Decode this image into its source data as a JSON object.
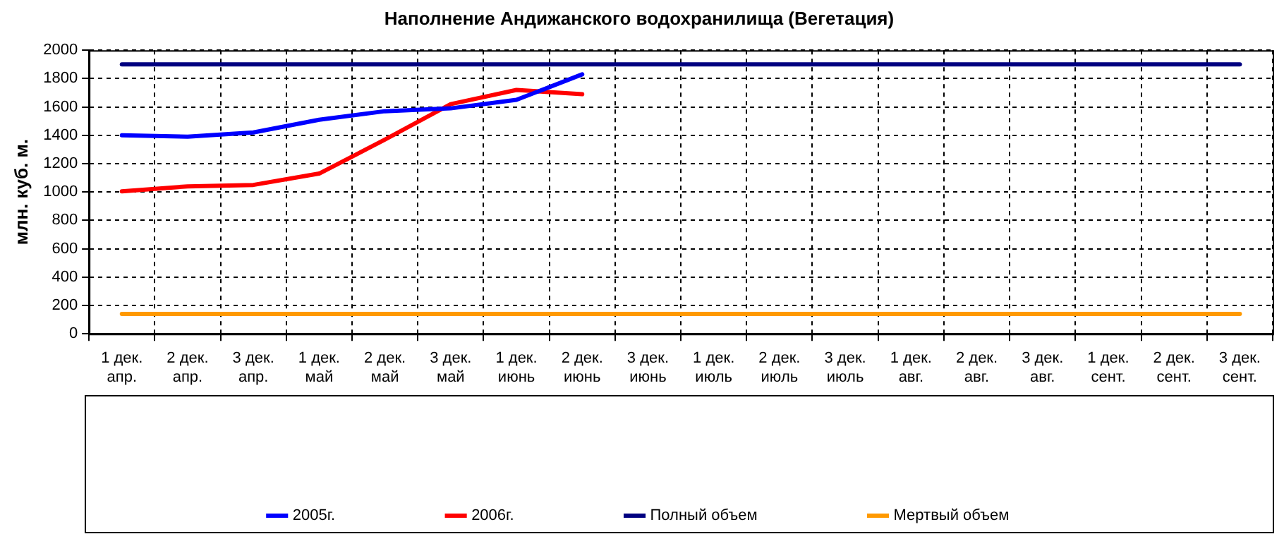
{
  "chart_data": {
    "type": "line",
    "title": "Наполнение Андижанского водохранилища (Вегетация)",
    "ylabel": "млн. куб. м.",
    "categories": [
      "1 дек. апр.",
      "2 дек. апр.",
      "3 дек. апр.",
      "1 дек. май",
      "2 дек. май",
      "3 дек. май",
      "1 дек. июнь",
      "2 дек. июнь",
      "3 дек. июнь",
      "1 дек. июль",
      "2 дек. июль",
      "3 дек. июль",
      "1 дек. авг.",
      "2 дек. авг.",
      "3 дек. авг.",
      "1 дек. сент.",
      "2 дек. сент.",
      "3 дек. сент."
    ],
    "series": [
      {
        "name": "2005г.",
        "color": "#0000ff",
        "values": [
          1400,
          1390,
          1420,
          1510,
          1570,
          1590,
          1650,
          1830,
          null,
          null,
          null,
          null,
          null,
          null,
          null,
          null,
          null,
          null
        ]
      },
      {
        "name": "2006г.",
        "color": "#ff0000",
        "values": [
          1005,
          1040,
          1050,
          1130,
          1370,
          1620,
          1720,
          1690,
          null,
          null,
          null,
          null,
          null,
          null,
          null,
          null,
          null,
          null
        ]
      },
      {
        "name": "Полный объем",
        "color": "#000080",
        "values": [
          1900,
          1900,
          1900,
          1900,
          1900,
          1900,
          1900,
          1900,
          1900,
          1900,
          1900,
          1900,
          1900,
          1900,
          1900,
          1900,
          1900,
          1900
        ]
      },
      {
        "name": "Мертвый объем",
        "color": "#ff9900",
        "values": [
          140,
          140,
          140,
          140,
          140,
          140,
          140,
          140,
          140,
          140,
          140,
          140,
          140,
          140,
          140,
          140,
          140,
          140
        ]
      }
    ],
    "ylim": [
      0,
      2000
    ],
    "yticks": [
      0,
      200,
      400,
      600,
      800,
      1000,
      1200,
      1400,
      1600,
      1800,
      2000
    ],
    "grid": true,
    "legend": "bottom",
    "marker": "none",
    "line_style": "solid"
  }
}
